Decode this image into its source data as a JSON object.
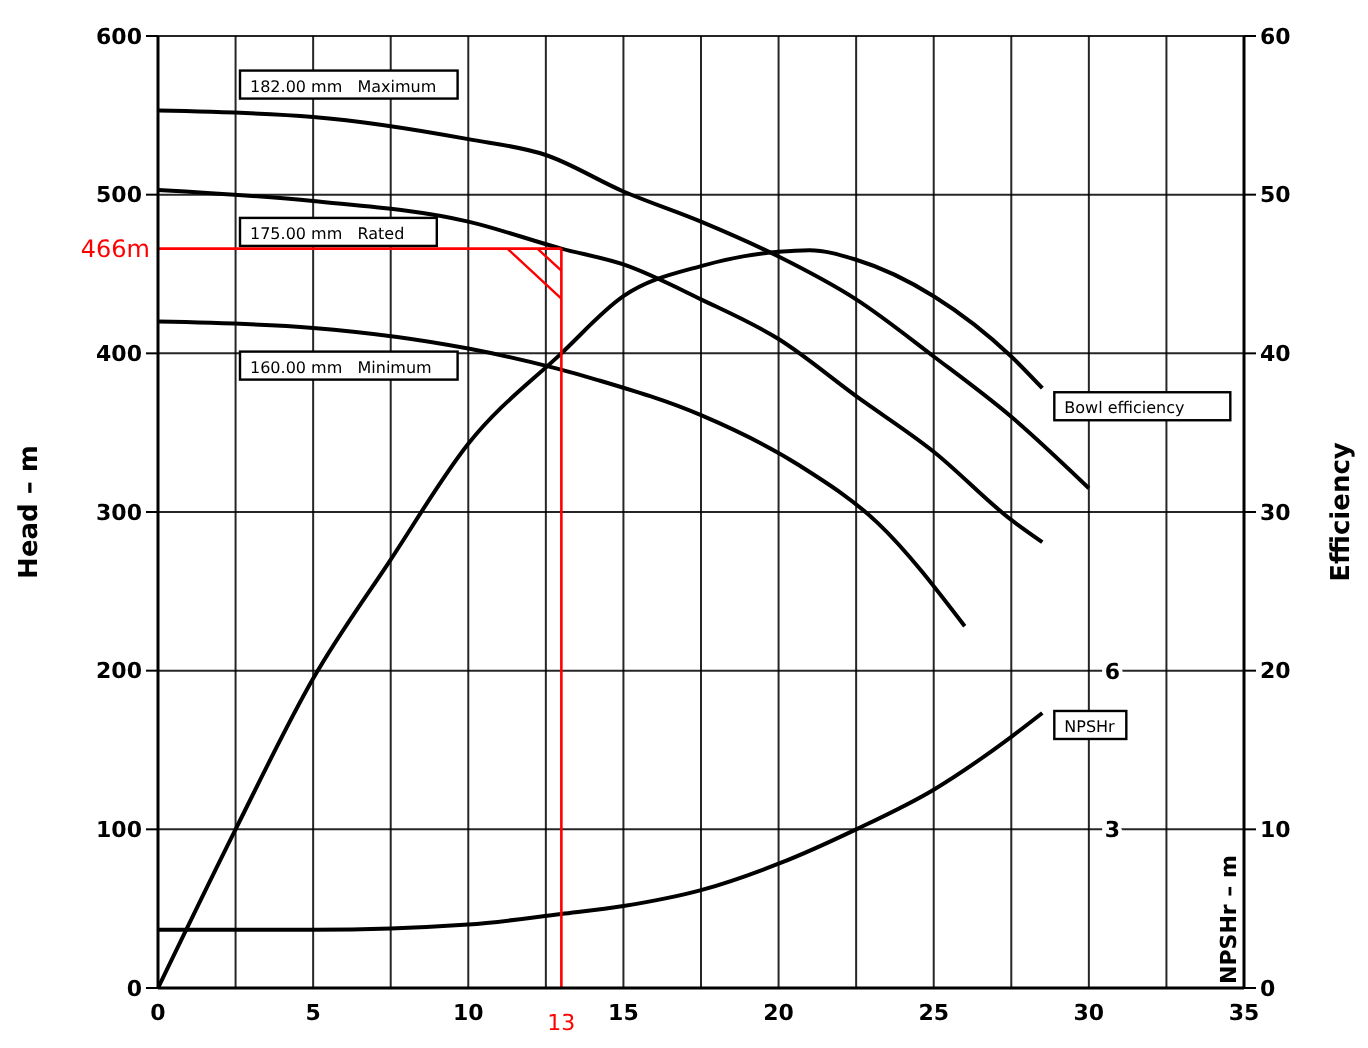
{
  "chart_data": {
    "type": "line",
    "ylabel": "Head – m",
    "y2label": "Efficiency",
    "y3label": "NPSHr – m",
    "xlim": [
      0,
      35
    ],
    "xticks": [
      0,
      {
        "value": 2.5,
        "label": null
      },
      5,
      {
        "value": 7.5,
        "label": null
      },
      10,
      {
        "value": 12.5,
        "label": null
      },
      15,
      {
        "value": 17.5,
        "label": null
      },
      20,
      {
        "value": 22.5,
        "label": null
      },
      25,
      {
        "value": 27.5,
        "label": null
      },
      30,
      {
        "value": 32.5,
        "label": null
      },
      35
    ],
    "ylim": [
      0,
      600
    ],
    "yticks": [
      0,
      100,
      200,
      300,
      400,
      500,
      600
    ],
    "y2lim": [
      0,
      60
    ],
    "y2ticks": [
      0,
      10,
      20,
      30,
      40,
      50,
      60
    ],
    "y3lim": [
      0,
      18
    ],
    "y3ticks": [
      3,
      6
    ],
    "grid": true,
    "marker": "none",
    "line_style": "solid",
    "series": [
      {
        "color": "#000000",
        "x": [
          0,
          5,
          10,
          12.5,
          15,
          17.5,
          20,
          22.5,
          25,
          27.5,
          30
        ],
        "values": [
          553,
          549,
          535,
          525,
          502,
          483,
          461,
          434,
          398,
          360,
          315
        ]
      },
      {
        "color": "#000000",
        "x": [
          0,
          5,
          10,
          13,
          15,
          17.5,
          20,
          22.5,
          25,
          27.5,
          28.5
        ],
        "values": [
          503,
          496,
          483,
          466,
          456,
          434,
          409,
          373,
          338,
          295,
          281
        ]
      },
      {
        "color": "#000000",
        "x": [
          0,
          5,
          10,
          14.2,
          17.5,
          20.7,
          23.2,
          26
        ],
        "values": [
          420,
          416,
          403,
          383,
          361,
          329,
          293,
          228
        ]
      },
      {
        "color": "#000000",
        "axis": "y2",
        "x": [
          0,
          2.5,
          5,
          7.5,
          10,
          13,
          15,
          17.5,
          20,
          21,
          22.5,
          25,
          27.5,
          28.5
        ],
        "values": [
          0,
          10,
          19.5,
          27,
          34.3,
          40,
          43.6,
          45.5,
          46.4,
          46.5,
          45.9,
          43.6,
          39.8,
          37.8
        ]
      },
      {
        "color": "#000000",
        "axis": "y3",
        "x": [
          0,
          5,
          10,
          13,
          15,
          17.5,
          20,
          22.5,
          25,
          27.5,
          28.5
        ],
        "values": [
          1.1,
          1.1,
          1.2,
          1.4,
          1.55,
          1.85,
          2.35,
          3.0,
          3.75,
          4.75,
          5.2
        ]
      }
    ],
    "ref_lines": [
      {
        "axis": "y",
        "value": 466,
        "label": "466m",
        "color": "#ff0000"
      },
      {
        "axis": "x",
        "value": 13,
        "label": "13",
        "color": "#ff0000"
      }
    ],
    "annotations": [
      "182.00 mm   Maximum",
      "175.00 mm   Rated",
      "160.00 mm   Minimum",
      "Bowl efficiency",
      "NPSHr"
    ]
  }
}
